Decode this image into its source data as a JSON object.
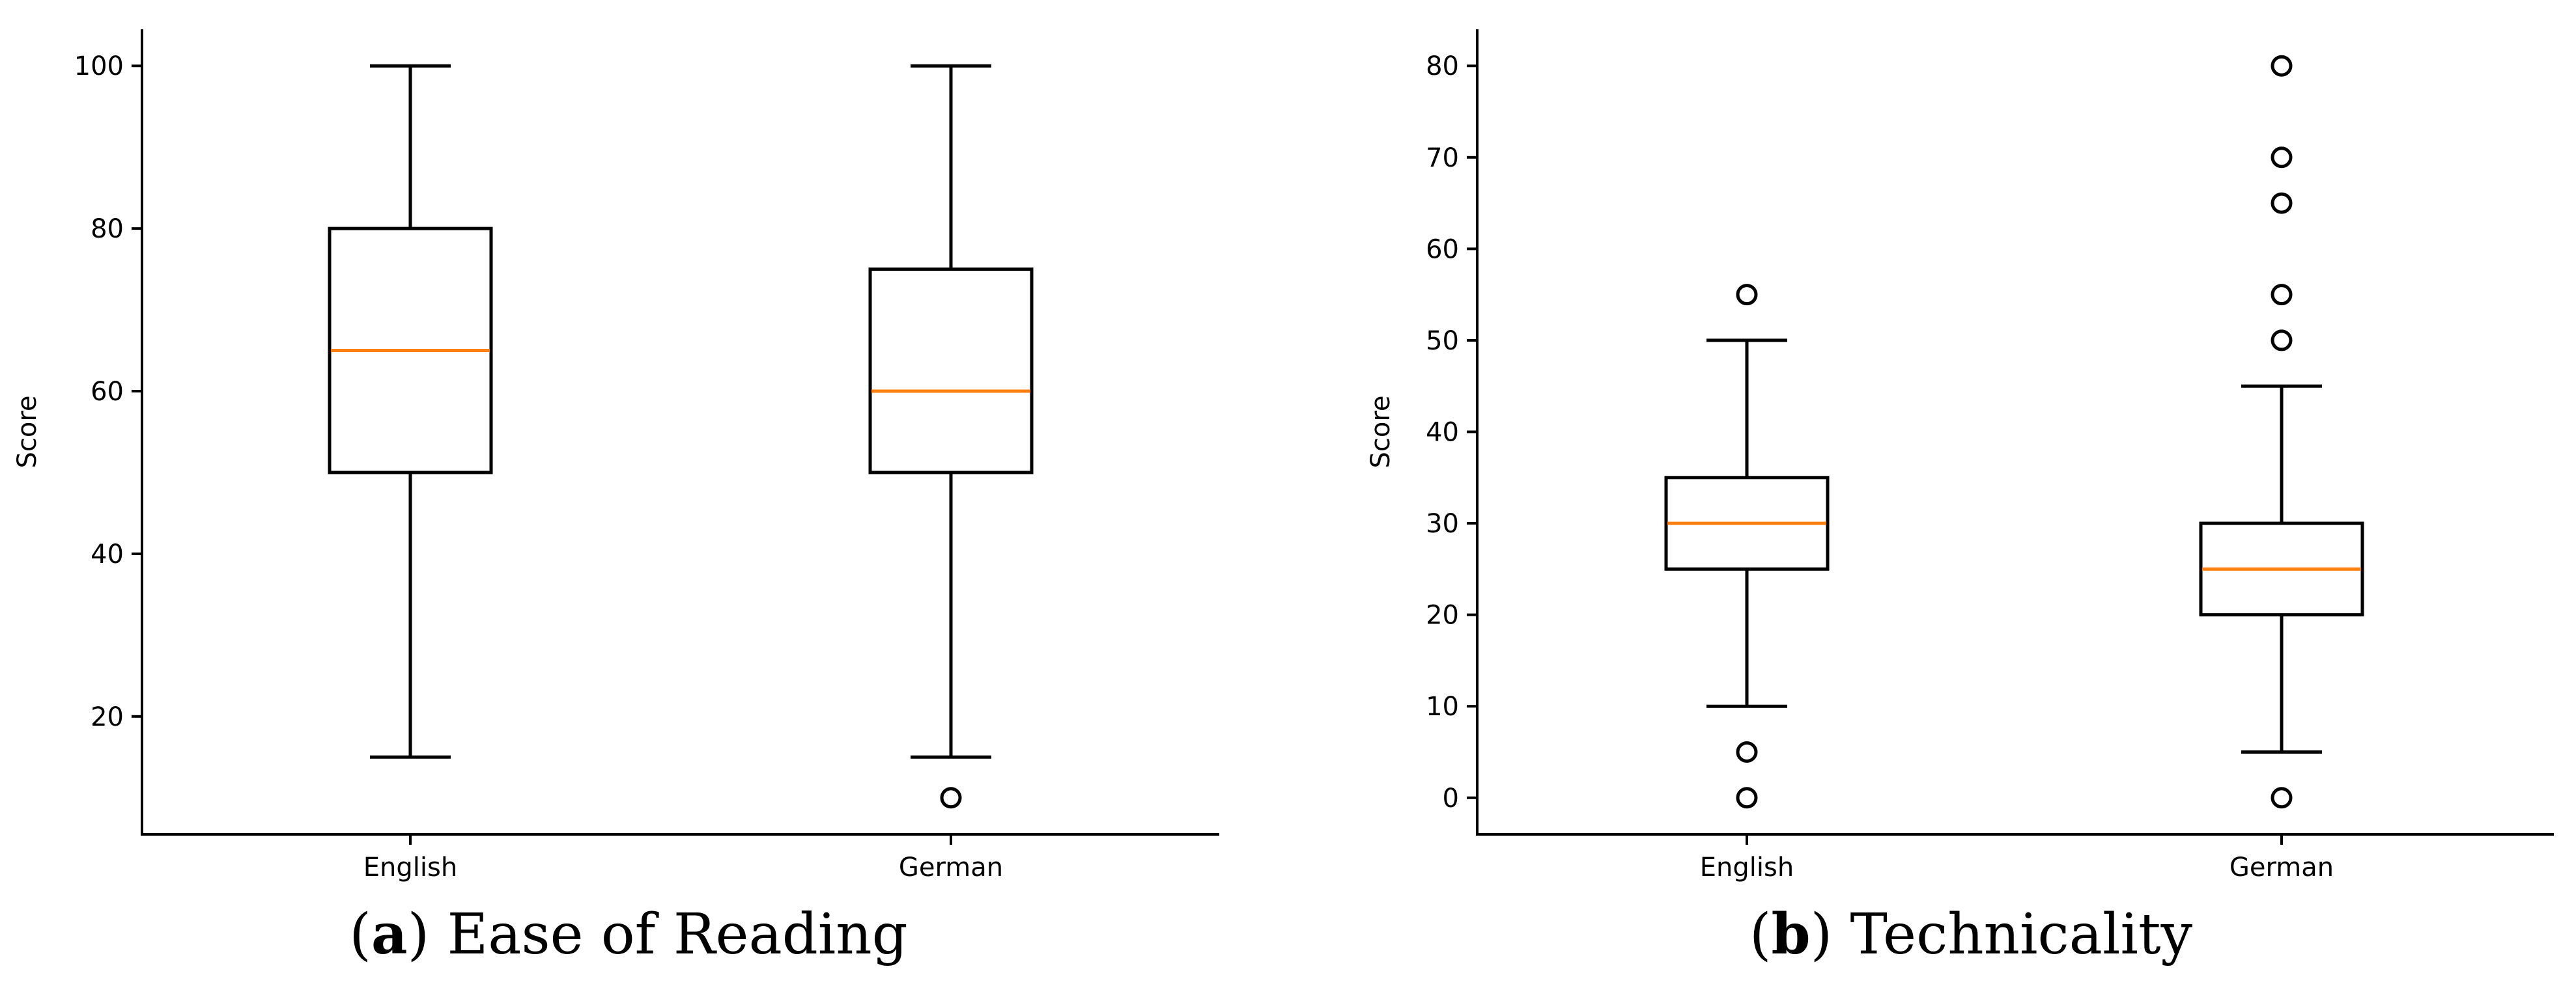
{
  "chart_data": [
    {
      "type": "box",
      "panel_letter": "a",
      "title": "Ease of Reading",
      "xlabel": "",
      "ylabel": "Score",
      "ylim": [
        5.5,
        104.5
      ],
      "yticks": [
        20,
        40,
        60,
        80,
        100
      ],
      "categories": [
        "English",
        "German"
      ],
      "boxes": [
        {
          "name": "English",
          "whisker_low": 15,
          "q1": 50,
          "median": 65,
          "q3": 80,
          "whisker_high": 100,
          "fliers": []
        },
        {
          "name": "German",
          "whisker_low": 15,
          "q1": 50,
          "median": 60,
          "q3": 75,
          "whisker_high": 100,
          "fliers": [
            10
          ]
        }
      ]
    },
    {
      "type": "box",
      "panel_letter": "b",
      "title": "Technicality",
      "xlabel": "",
      "ylabel": "Score",
      "ylim": [
        -4,
        84
      ],
      "yticks": [
        0,
        10,
        20,
        30,
        40,
        50,
        60,
        70,
        80
      ],
      "categories": [
        "English",
        "German"
      ],
      "boxes": [
        {
          "name": "English",
          "whisker_low": 10,
          "q1": 25,
          "median": 30,
          "q3": 35,
          "whisker_high": 50,
          "fliers": [
            0,
            5,
            55
          ]
        },
        {
          "name": "German",
          "whisker_low": 5,
          "q1": 20,
          "median": 25,
          "q3": 30,
          "whisker_high": 45,
          "fliers": [
            0,
            50,
            55,
            65,
            70,
            80
          ]
        }
      ]
    }
  ],
  "colors": {
    "median": "#ff7f0e",
    "axes": "#000000"
  }
}
